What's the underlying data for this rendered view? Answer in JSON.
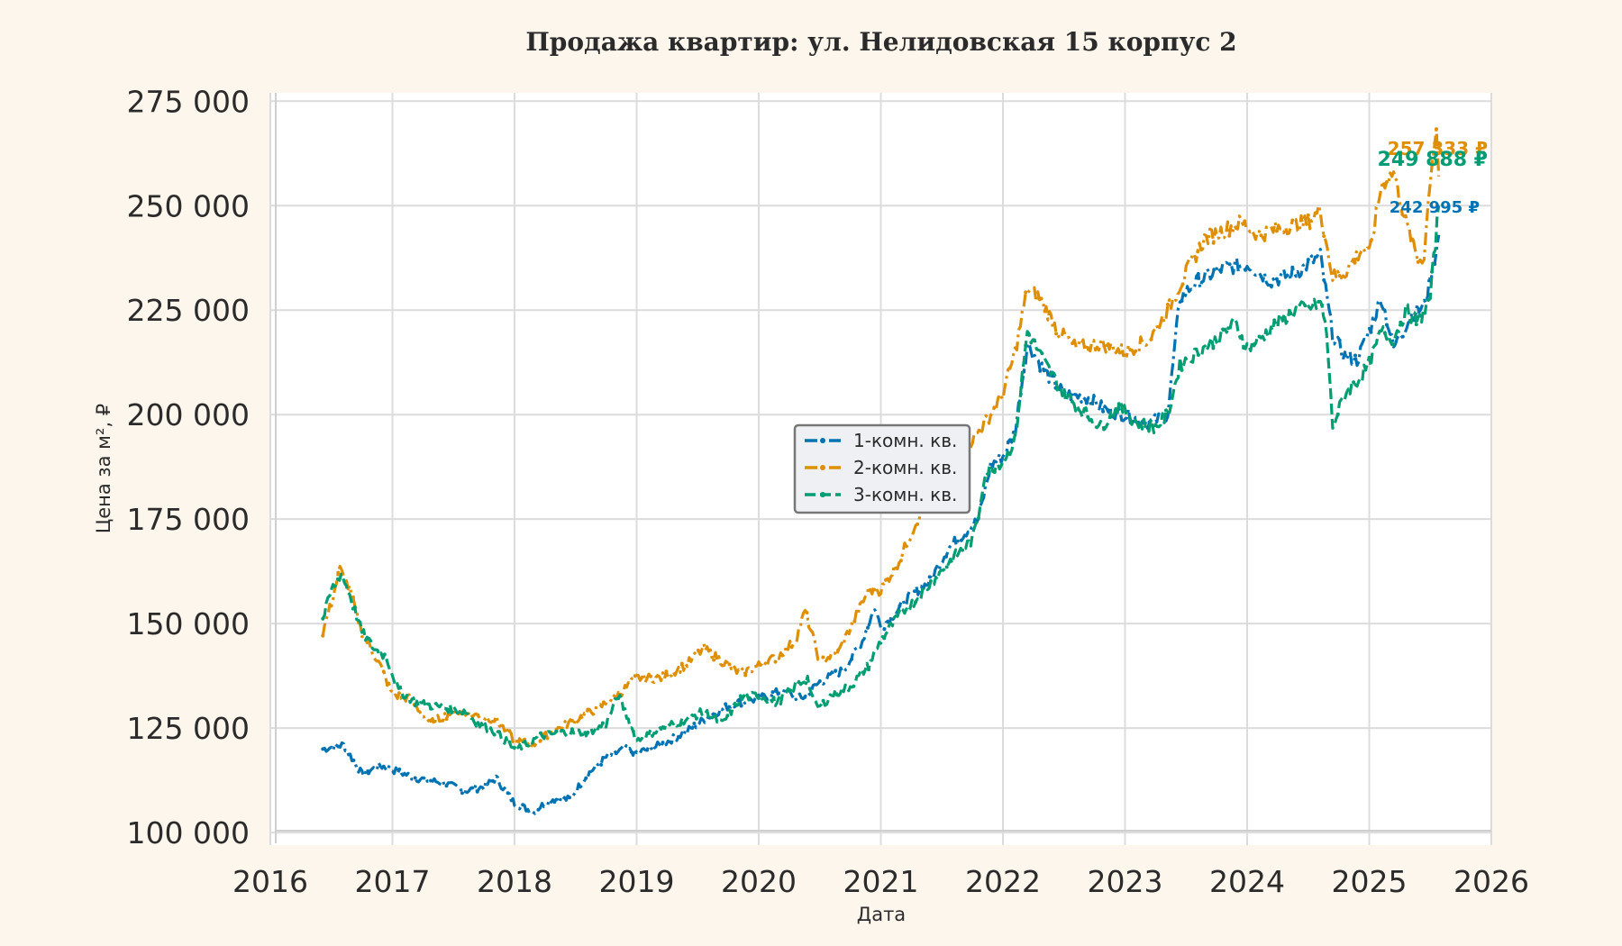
{
  "chart_data": {
    "type": "line",
    "title": "Продажа квартир: ул. Нелидовская 15 корпус 2",
    "xlabel": "Дата",
    "ylabel": "Цена за м², ₽",
    "xlim": [
      2016.0,
      2026.0
    ],
    "ylim": [
      97000,
      277000
    ],
    "x_ticks": [
      2016,
      2017,
      2018,
      2019,
      2020,
      2021,
      2022,
      2023,
      2024,
      2025,
      2026
    ],
    "x_tick_labels": [
      "2016",
      "2017",
      "2018",
      "2019",
      "2020",
      "2021",
      "2022",
      "2023",
      "2024",
      "2025",
      "2026"
    ],
    "y_ticks": [
      100000,
      125000,
      150000,
      175000,
      200000,
      225000,
      250000,
      275000
    ],
    "y_tick_labels": [
      "100 000",
      "125 000",
      "150 000",
      "175 000",
      "200 000",
      "225 000",
      "250 000",
      "275 000"
    ],
    "grid": true,
    "legend_position": "center",
    "series": [
      {
        "name": "1-комн. кв.",
        "color": "#0173b2",
        "style": "dashdot",
        "end_label": "242 995 ₽",
        "x": [
          2016.43,
          2016.6,
          2016.75,
          2016.9,
          2017.0,
          2017.2,
          2017.4,
          2017.6,
          2017.75,
          2017.85,
          2018.0,
          2018.15,
          2018.3,
          2018.45,
          2018.6,
          2018.75,
          2018.9,
          2019.0,
          2019.2,
          2019.4,
          2019.6,
          2019.8,
          2020.0,
          2020.2,
          2020.35,
          2020.5,
          2020.7,
          2020.85,
          2020.95,
          2021.0,
          2021.1,
          2021.25,
          2021.4,
          2021.55,
          2021.7,
          2021.8,
          2021.9,
          2022.0,
          2022.1,
          2022.2,
          2022.35,
          2022.5,
          2022.7,
          2022.85,
          2023.0,
          2023.2,
          2023.35,
          2023.45,
          2023.6,
          2023.8,
          2024.0,
          2024.2,
          2024.4,
          2024.6,
          2024.7,
          2024.8,
          2024.9,
          2025.0,
          2025.1,
          2025.2,
          2025.35,
          2025.45,
          2025.52,
          2025.57
        ],
        "y": [
          120000,
          121000,
          114000,
          116000,
          115000,
          113000,
          112000,
          110000,
          111000,
          113000,
          107000,
          105000,
          108000,
          108000,
          114000,
          118000,
          120000,
          119000,
          121000,
          124000,
          128000,
          131000,
          132000,
          134000,
          132000,
          136000,
          139000,
          146000,
          154000,
          149000,
          152000,
          157000,
          160000,
          168000,
          172000,
          175000,
          188000,
          190000,
          196000,
          217000,
          210000,
          205000,
          204000,
          201000,
          200000,
          198000,
          200000,
          228000,
          232000,
          235000,
          236000,
          232000,
          234000,
          238000,
          219000,
          214000,
          213000,
          220000,
          228000,
          216000,
          224000,
          226000,
          235000,
          243000
        ]
      },
      {
        "name": "2-комн. кв.",
        "color": "#de8f05",
        "style": "dashdot",
        "end_label": "257 333 ₽",
        "x": [
          2016.43,
          2016.5,
          2016.57,
          2016.65,
          2016.75,
          2016.9,
          2017.0,
          2017.15,
          2017.3,
          2017.5,
          2017.7,
          2017.85,
          2018.0,
          2018.15,
          2018.3,
          2018.5,
          2018.7,
          2018.85,
          2019.0,
          2019.2,
          2019.4,
          2019.55,
          2019.7,
          2019.85,
          2020.0,
          2020.15,
          2020.3,
          2020.38,
          2020.5,
          2020.65,
          2020.8,
          2020.9,
          2021.0,
          2021.15,
          2021.3,
          2021.45,
          2021.6,
          2021.75,
          2021.9,
          2022.0,
          2022.1,
          2022.2,
          2022.3,
          2022.45,
          2022.6,
          2022.8,
          2023.0,
          2023.2,
          2023.35,
          2023.5,
          2023.65,
          2023.8,
          2023.95,
          2024.1,
          2024.3,
          2024.5,
          2024.6,
          2024.7,
          2024.8,
          2024.95,
          2025.0,
          2025.1,
          2025.2,
          2025.3,
          2025.4,
          2025.45,
          2025.5,
          2025.55,
          2025.57
        ],
        "y": [
          148000,
          155000,
          163000,
          158000,
          148000,
          140000,
          133000,
          132000,
          126000,
          129000,
          128000,
          127000,
          122000,
          121000,
          124000,
          127000,
          130000,
          133000,
          137000,
          137000,
          140000,
          144000,
          141000,
          138000,
          140000,
          142000,
          146000,
          153000,
          141000,
          143000,
          152000,
          158000,
          158000,
          165000,
          175000,
          182000,
          188000,
          194000,
          200000,
          205000,
          215000,
          230000,
          228000,
          220000,
          216000,
          217000,
          215000,
          218000,
          225000,
          234000,
          242000,
          244000,
          246000,
          243000,
          245000,
          246000,
          249000,
          233000,
          234000,
          240000,
          238000,
          255000,
          258000,
          246000,
          237000,
          238000,
          257000,
          269000,
          257000
        ]
      },
      {
        "name": "3-комн. кв.",
        "color": "#029e73",
        "style": "dashed",
        "end_label": "249 888 ₽",
        "x": [
          2016.43,
          2016.5,
          2016.58,
          2016.65,
          2016.75,
          2016.85,
          2016.95,
          2017.05,
          2017.2,
          2017.4,
          2017.6,
          2017.7,
          2017.85,
          2018.0,
          2018.1,
          2018.2,
          2018.4,
          2018.6,
          2018.75,
          2018.85,
          2019.0,
          2019.2,
          2019.4,
          2019.55,
          2019.7,
          2019.85,
          2020.0,
          2020.15,
          2020.3,
          2020.4,
          2020.45,
          2020.5,
          2020.6,
          2020.75,
          2020.9,
          2021.0,
          2021.15,
          2021.3,
          2021.45,
          2021.6,
          2021.75,
          2021.8,
          2021.85,
          2022.0,
          2022.1,
          2022.2,
          2022.35,
          2022.5,
          2022.65,
          2022.8,
          2022.95,
          2023.1,
          2023.25,
          2023.35,
          2023.45,
          2023.6,
          2023.75,
          2023.9,
          2024.0,
          2024.1,
          2024.25,
          2024.4,
          2024.55,
          2024.6,
          2024.65,
          2024.7,
          2024.8,
          2024.9,
          2025.0,
          2025.1,
          2025.2,
          2025.3,
          2025.4,
          2025.5,
          2025.57
        ],
        "y": [
          151000,
          158000,
          162000,
          157000,
          148000,
          144000,
          142000,
          134000,
          131000,
          130000,
          129000,
          126000,
          124000,
          120000,
          121000,
          123000,
          124000,
          124000,
          126000,
          133000,
          122000,
          125000,
          127000,
          129000,
          126000,
          132000,
          133000,
          131000,
          135000,
          137000,
          131000,
          130000,
          133000,
          135000,
          140000,
          146000,
          152000,
          156000,
          161000,
          166000,
          170000,
          176000,
          186000,
          189000,
          194000,
          220000,
          212000,
          205000,
          201000,
          197000,
          202000,
          198000,
          197000,
          200000,
          212000,
          215000,
          218000,
          222000,
          216000,
          218000,
          222000,
          225000,
          226000,
          227000,
          220000,
          197000,
          205000,
          208000,
          212000,
          220000,
          218000,
          225000,
          222000,
          228000,
          250000
        ]
      }
    ]
  }
}
